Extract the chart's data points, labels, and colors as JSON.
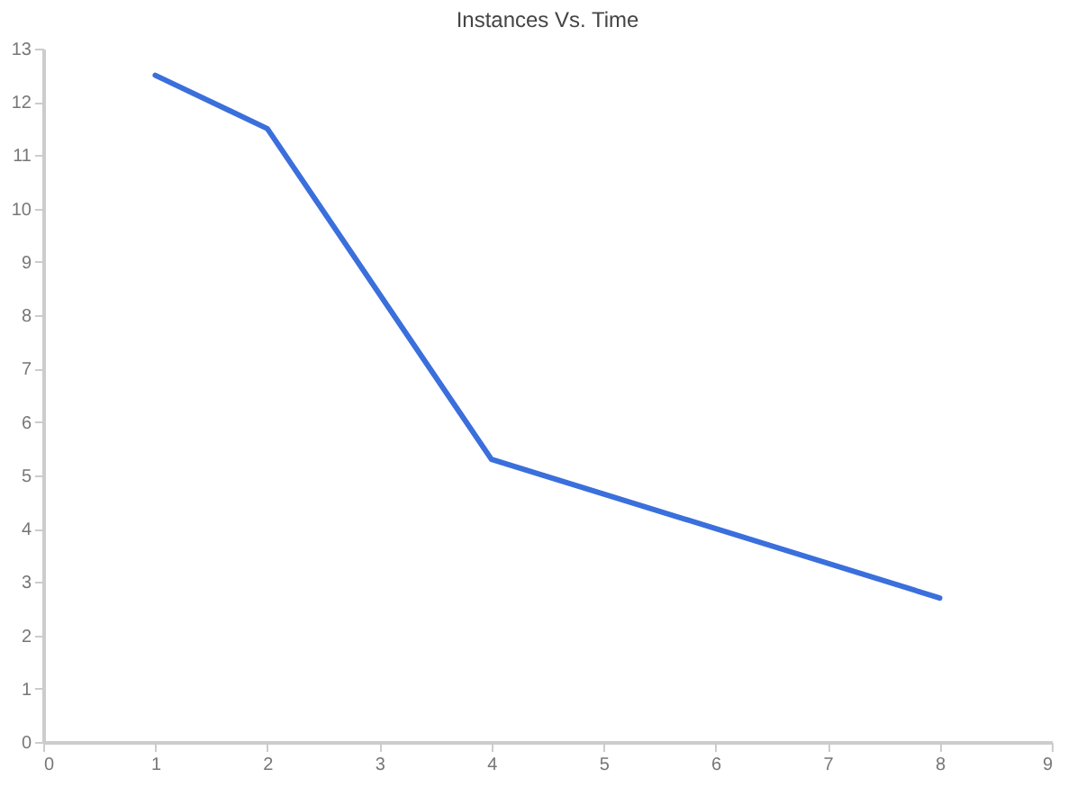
{
  "chart_data": {
    "type": "line",
    "title": "Instances Vs. Time",
    "x": [
      1,
      2,
      4,
      8
    ],
    "series": [
      {
        "color": "#3a6fdc",
        "values": [
          12.5,
          11.5,
          5.3,
          2.7
        ]
      }
    ],
    "xlim": [
      0,
      9
    ],
    "xticks": [
      0,
      1,
      2,
      3,
      4,
      5,
      6,
      7,
      8,
      9
    ],
    "ylim": [
      0,
      13
    ],
    "yticks": [
      0,
      1,
      2,
      3,
      4,
      5,
      6,
      7,
      8,
      9,
      10,
      11,
      12,
      13
    ],
    "grid": false,
    "marker": "none",
    "line_style": "solid"
  }
}
